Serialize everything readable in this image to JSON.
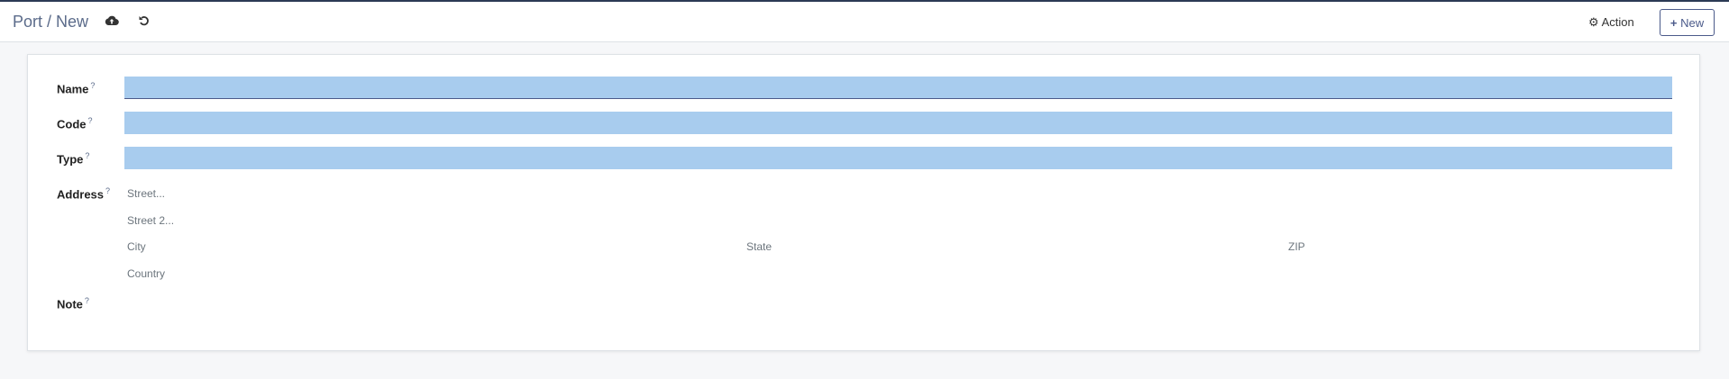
{
  "header": {
    "title": "Port / New",
    "save_icon": "cloud-upload-icon",
    "discard_icon": "undo-icon",
    "action_label": "Action",
    "new_label": "New"
  },
  "form": {
    "fields": [
      {
        "label": "Name",
        "help": "?",
        "value": ""
      },
      {
        "label": "Code",
        "help": "?",
        "value": ""
      },
      {
        "label": "Type",
        "help": "?",
        "value": ""
      }
    ],
    "address": {
      "label": "Address",
      "help": "?",
      "street": "Street...",
      "street2": "Street 2...",
      "city": "City",
      "state": "State",
      "zip": "ZIP",
      "country": "Country"
    },
    "note": {
      "label": "Note",
      "help": "?"
    }
  },
  "colors": {
    "required_field": "#a8ccee",
    "accent": "#4b5a8a"
  }
}
